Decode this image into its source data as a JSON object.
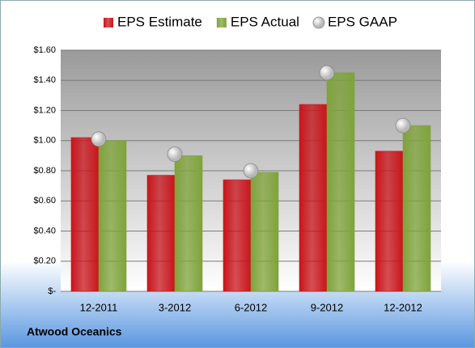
{
  "chart_data": {
    "type": "bar",
    "categories": [
      "12-2011",
      "3-2012",
      "6-2012",
      "9-2012",
      "12-2012"
    ],
    "series": [
      {
        "name": "EPS Estimate",
        "color": "#c8151b",
        "type": "bar",
        "values": [
          1.02,
          0.77,
          0.74,
          1.24,
          0.93
        ]
      },
      {
        "name": "EPS Actual",
        "color": "#7fa33a",
        "type": "bar",
        "values": [
          1.0,
          0.9,
          0.79,
          1.45,
          1.1
        ]
      },
      {
        "name": "EPS GAAP",
        "color": "#b8b8b8",
        "type": "scatter",
        "values": [
          1.01,
          0.91,
          0.8,
          1.45,
          1.1
        ]
      }
    ],
    "ylim": [
      0,
      1.6
    ],
    "yticks": [
      {
        "value": 0,
        "label": "$-"
      },
      {
        "value": 0.2,
        "label": "$0.20"
      },
      {
        "value": 0.4,
        "label": "$0.40"
      },
      {
        "value": 0.6,
        "label": "$0.60"
      },
      {
        "value": 0.8,
        "label": "$0.80"
      },
      {
        "value": 1.0,
        "label": "$1.00"
      },
      {
        "value": 1.2,
        "label": "$1.20"
      },
      {
        "value": 1.4,
        "label": "$1.40"
      },
      {
        "value": 1.6,
        "label": "$1.60"
      }
    ],
    "grid": true,
    "legend": "top",
    "footer": "Atwood Oceanics"
  }
}
